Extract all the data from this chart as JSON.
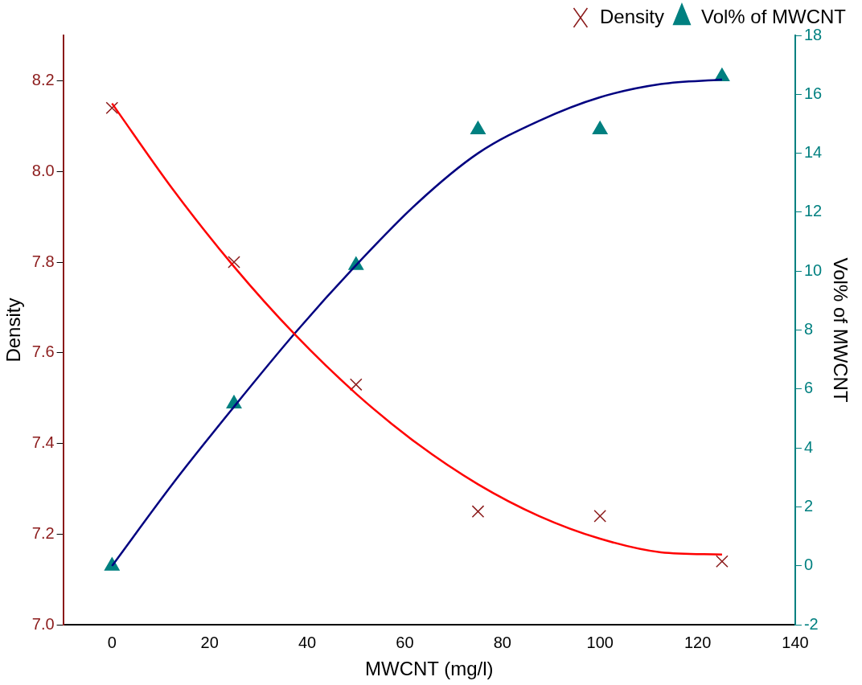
{
  "chart_data": {
    "type": "scatter",
    "xlabel": "MWCNT (mg/l)",
    "ylabel": "Density",
    "y2label": "Vol% of MWCNT",
    "xlim": [
      -10,
      140
    ],
    "xticks": [
      0,
      20,
      40,
      60,
      80,
      100,
      120,
      140
    ],
    "ylim": [
      7.0,
      8.3
    ],
    "yticks": [
      {
        "value": 7,
        "label": "7.0"
      },
      7.2,
      7.4,
      7.6,
      7.8,
      {
        "value": 8,
        "label": "8.0"
      },
      8.2
    ],
    "y2lim": [
      -2,
      18
    ],
    "y2ticks": [
      -2,
      0,
      2,
      4,
      6,
      8,
      10,
      12,
      14,
      16,
      18
    ],
    "grid": false,
    "legend": "top right",
    "series": [
      {
        "name": "Density",
        "marker": "cross",
        "color": "#8b1a1a",
        "x": [
          0,
          25,
          50,
          75,
          100,
          125
        ],
        "values": [
          8.14,
          7.8,
          7.53,
          7.25,
          7.24,
          7.14
        ]
      },
      {
        "name": "Vol% of MWCNT",
        "marker": "triangle",
        "color": "#008080",
        "axis": "y2",
        "x": [
          0,
          25,
          50,
          75,
          100,
          125
        ],
        "values": [
          0,
          5.5,
          10.2,
          14.8,
          14.8,
          16.6
        ]
      },
      {
        "type": "line",
        "marker": "none",
        "color": "#ff0000",
        "x": [
          0,
          12.5,
          25,
          37.5,
          50,
          62.5,
          75,
          87.5,
          100,
          112.5,
          125
        ],
        "values": [
          8.15,
          7.96,
          7.79,
          7.64,
          7.51,
          7.4,
          7.31,
          7.24,
          7.19,
          7.16,
          7.155
        ]
      },
      {
        "type": "line",
        "marker": "none",
        "color": "#000080",
        "axis": "y2",
        "x": [
          0,
          12.5,
          25,
          37.5,
          50,
          62.5,
          75,
          87.5,
          100,
          112.5,
          125
        ],
        "values": [
          0,
          2.8,
          5.4,
          7.9,
          10.2,
          12.3,
          14.0,
          15.1,
          15.9,
          16.35,
          16.5
        ]
      }
    ]
  }
}
